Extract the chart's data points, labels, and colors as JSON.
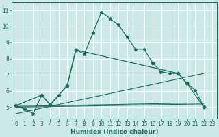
{
  "xlabel": "Humidex (Indice chaleur)",
  "bg_color": "#cce9e7",
  "grid_color": "#b0d8d5",
  "line_color": "#1a6b62",
  "xlim": [
    -0.5,
    23.5
  ],
  "ylim": [
    4.3,
    11.5
  ],
  "xticks": [
    0,
    1,
    2,
    3,
    4,
    5,
    6,
    7,
    8,
    9,
    10,
    11,
    12,
    13,
    14,
    15,
    16,
    17,
    18,
    19,
    20,
    21,
    22,
    23
  ],
  "yticks": [
    5,
    6,
    7,
    8,
    9,
    10,
    11
  ],
  "main_x": [
    0,
    1,
    2,
    3,
    4,
    5,
    6,
    7,
    8,
    9,
    10,
    11,
    12,
    13,
    14,
    15,
    16,
    17,
    18,
    19,
    20,
    21,
    22
  ],
  "main_y": [
    5.1,
    4.9,
    4.6,
    5.75,
    5.15,
    5.75,
    6.35,
    8.55,
    8.3,
    9.6,
    10.9,
    10.5,
    10.1,
    9.35,
    8.6,
    8.6,
    7.75,
    7.2,
    7.1,
    7.1,
    6.5,
    6.05,
    5.0
  ],
  "second_x": [
    0,
    3,
    4,
    6,
    7,
    19,
    20,
    22
  ],
  "second_y": [
    5.1,
    5.75,
    5.15,
    6.35,
    8.55,
    7.1,
    6.5,
    5.0
  ],
  "line1_x": [
    0,
    22
  ],
  "line1_y": [
    5.0,
    5.2
  ],
  "line2_x": [
    0,
    22
  ],
  "line2_y": [
    4.6,
    7.1
  ],
  "line3_x": [
    0,
    20
  ],
  "line3_y": [
    5.05,
    5.25
  ]
}
